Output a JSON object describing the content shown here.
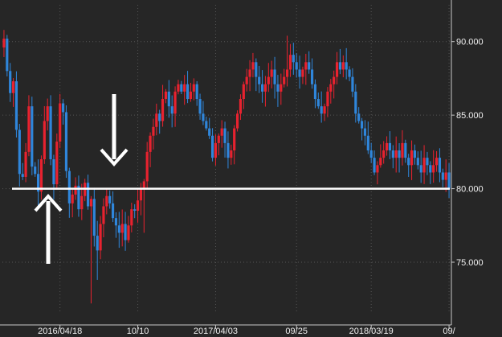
{
  "chart_data": {
    "type": "candlestick",
    "title": "",
    "xlabel": "",
    "ylabel": "",
    "ylim": [
      71.5,
      92.5
    ],
    "grid": true,
    "y_ticks": [
      {
        "value": 75,
        "label": "75.000"
      },
      {
        "value": 80,
        "label": "80.000"
      },
      {
        "value": 85,
        "label": "85.000"
      },
      {
        "value": 90,
        "label": "90.000"
      }
    ],
    "x_ticks": [
      {
        "index": 18,
        "label": "2016/04/18"
      },
      {
        "index": 43,
        "label": "10/10"
      },
      {
        "index": 68,
        "label": "2017/04/03"
      },
      {
        "index": 94,
        "label": "09/25"
      },
      {
        "index": 118,
        "label": "2018/03/19"
      },
      {
        "index": 143,
        "label": "09/"
      }
    ],
    "closes": [
      90.2,
      88.0,
      86.5,
      87.3,
      84.0,
      81.0,
      80.8,
      82.5,
      85.6,
      81.5,
      81.0,
      79.8,
      82.0,
      84.6,
      85.6,
      82.0,
      80.3,
      83.2,
      85.8,
      85.2,
      81.2,
      79.0,
      79.6,
      80.2,
      78.6,
      79.5,
      80.4,
      78.8,
      79.3,
      76.8,
      75.8,
      77.6,
      78.8,
      79.5,
      79.0,
      78.0,
      77.5,
      77.0,
      77.6,
      76.5,
      77.5,
      78.6,
      78.5,
      79.2,
      80.0,
      80.5,
      82.5,
      83.6,
      84.2,
      85.1,
      84.6,
      86.1,
      86.6,
      85.6,
      85.1,
      86.6,
      87.1,
      86.6,
      87.1,
      86.1,
      86.6,
      87.1,
      86.1,
      85.1,
      84.6,
      84.1,
      83.6,
      82.1,
      83.1,
      83.6,
      84.1,
      83.1,
      82.1,
      82.6,
      84.1,
      85.1,
      86.1,
      87.1,
      87.6,
      88.1,
      88.6,
      87.6,
      87.1,
      86.6,
      87.1,
      87.6,
      88.1,
      87.1,
      86.6,
      87.1,
      87.6,
      88.1,
      89.1,
      88.6,
      88.1,
      87.6,
      88.1,
      88.6,
      88.1,
      87.1,
      86.1,
      85.6,
      85.1,
      85.6,
      86.6,
      87.1,
      87.6,
      88.6,
      88.1,
      88.6,
      88.1,
      87.6,
      86.6,
      85.1,
      84.6,
      84.1,
      83.6,
      82.6,
      82.1,
      81.1,
      81.6,
      82.1,
      82.6,
      83.1,
      82.6,
      82.1,
      82.6,
      82.1,
      83.1,
      82.1,
      81.6,
      82.6,
      82.1,
      81.6,
      81.1,
      82.1,
      81.6,
      81.1,
      81.6,
      82.1,
      81.1,
      80.6,
      81.1,
      80.0
    ],
    "reference_line": {
      "value": 80.0
    },
    "annotations": [
      {
        "kind": "arrow-up",
        "index": 10
      },
      {
        "kind": "arrow-down",
        "index": 25
      }
    ],
    "colors": {
      "background": "#262626",
      "up": "#e8222f",
      "down": "#2f86db",
      "grid": "#555555",
      "axis": "#c8c8c8",
      "reference": "#ffffff"
    }
  }
}
